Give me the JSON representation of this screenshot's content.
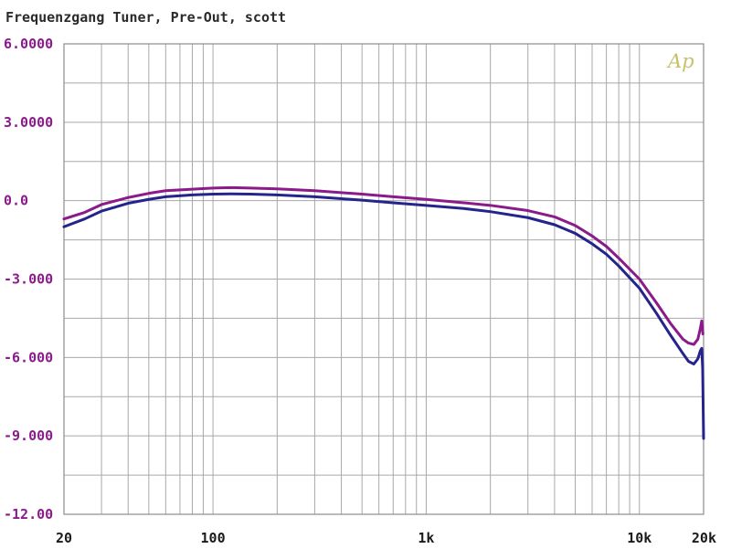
{
  "chart_data": {
    "type": "line",
    "title": "Frequenzgang Tuner, Pre-Out, scott",
    "xscale": "log",
    "xlim": [
      20,
      20000
    ],
    "ylim": [
      -12,
      6
    ],
    "grid": true,
    "y_tick_labels": [
      "6.0000",
      "3.0000",
      "0.0",
      "-3.000",
      "-6.000",
      "-9.000",
      "-12.00"
    ],
    "y_tick_values": [
      6,
      3,
      0,
      -3,
      -6,
      -9,
      -12
    ],
    "x_tick_labels": [
      "20",
      "100",
      "1k",
      "10k",
      "20k"
    ],
    "x_tick_values": [
      20,
      100,
      1000,
      10000,
      20000
    ],
    "logo_text": "Ap",
    "series": [
      {
        "color": "#8b1a8b",
        "points": [
          [
            20,
            -0.7
          ],
          [
            25,
            -0.45
          ],
          [
            30,
            -0.15
          ],
          [
            40,
            0.12
          ],
          [
            50,
            0.28
          ],
          [
            60,
            0.38
          ],
          [
            80,
            0.44
          ],
          [
            100,
            0.48
          ],
          [
            120,
            0.5
          ],
          [
            150,
            0.48
          ],
          [
            200,
            0.45
          ],
          [
            300,
            0.38
          ],
          [
            500,
            0.25
          ],
          [
            700,
            0.15
          ],
          [
            1000,
            0.05
          ],
          [
            1500,
            -0.08
          ],
          [
            2000,
            -0.18
          ],
          [
            3000,
            -0.38
          ],
          [
            4000,
            -0.62
          ],
          [
            5000,
            -0.95
          ],
          [
            6000,
            -1.35
          ],
          [
            7000,
            -1.75
          ],
          [
            8000,
            -2.2
          ],
          [
            10000,
            -3.0
          ],
          [
            12000,
            -3.9
          ],
          [
            14000,
            -4.7
          ],
          [
            16000,
            -5.3
          ],
          [
            17000,
            -5.45
          ],
          [
            18000,
            -5.5
          ],
          [
            18800,
            -5.3
          ],
          [
            19300,
            -4.9
          ],
          [
            19600,
            -4.6
          ],
          [
            19850,
            -5.1
          ]
        ]
      },
      {
        "color": "#24248c",
        "points": [
          [
            20,
            -1.0
          ],
          [
            25,
            -0.7
          ],
          [
            30,
            -0.4
          ],
          [
            40,
            -0.1
          ],
          [
            50,
            0.05
          ],
          [
            60,
            0.15
          ],
          [
            80,
            0.22
          ],
          [
            100,
            0.25
          ],
          [
            120,
            0.26
          ],
          [
            150,
            0.25
          ],
          [
            200,
            0.22
          ],
          [
            300,
            0.15
          ],
          [
            500,
            0.02
          ],
          [
            700,
            -0.08
          ],
          [
            1000,
            -0.18
          ],
          [
            1500,
            -0.3
          ],
          [
            2000,
            -0.42
          ],
          [
            3000,
            -0.65
          ],
          [
            4000,
            -0.92
          ],
          [
            5000,
            -1.25
          ],
          [
            6000,
            -1.65
          ],
          [
            7000,
            -2.05
          ],
          [
            8000,
            -2.5
          ],
          [
            10000,
            -3.35
          ],
          [
            12000,
            -4.3
          ],
          [
            14000,
            -5.15
          ],
          [
            16000,
            -5.85
          ],
          [
            17000,
            -6.15
          ],
          [
            18000,
            -6.25
          ],
          [
            18800,
            -6.05
          ],
          [
            19300,
            -5.75
          ],
          [
            19600,
            -5.65
          ],
          [
            19800,
            -6.4
          ],
          [
            20000,
            -9.1
          ]
        ]
      }
    ]
  },
  "colors": {
    "grid": "#a8a8a8",
    "axis_label": "#8b1a8b",
    "background": "#ffffff"
  }
}
